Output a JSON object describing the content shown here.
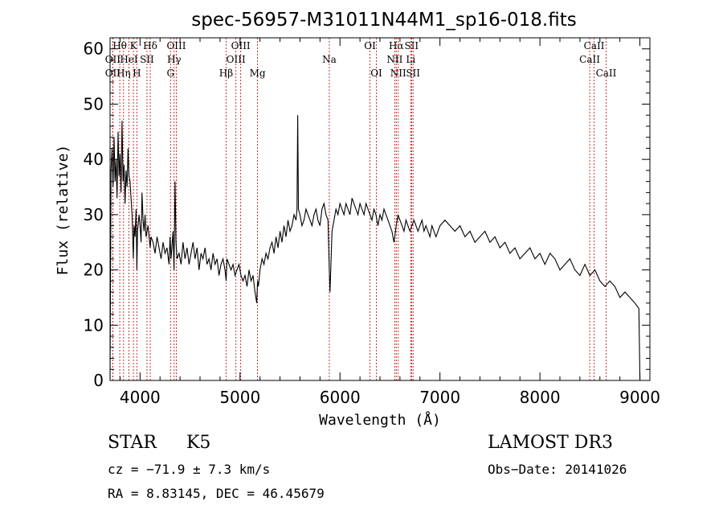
{
  "chart_data": {
    "type": "line",
    "title": "spec-56957-M31011N44M1_sp16-018.fits",
    "xlabel": "Wavelength (Å)",
    "ylabel": "Flux (relative)",
    "xlim": [
      3700,
      9100
    ],
    "ylim": [
      0,
      62
    ],
    "xticks": [
      4000,
      5000,
      6000,
      7000,
      8000,
      9000
    ],
    "yticks": [
      0,
      10,
      20,
      30,
      40,
      50,
      60
    ],
    "grid": false,
    "series": [
      {
        "x": [
          3700,
          3710,
          3720,
          3730,
          3740,
          3750,
          3760,
          3770,
          3780,
          3790,
          3800,
          3810,
          3820,
          3830,
          3840,
          3850,
          3860,
          3870,
          3880,
          3890,
          3900,
          3910,
          3920,
          3930,
          3933,
          3940,
          3950,
          3960,
          3968,
          3975,
          3990,
          4000,
          4010,
          4020,
          4030,
          4040,
          4050,
          4060,
          4080,
          4101,
          4110,
          4130,
          4150,
          4170,
          4190,
          4210,
          4230,
          4250,
          4270,
          4290,
          4300,
          4310,
          4330,
          4340,
          4350,
          4360,
          4370,
          4390,
          4410,
          4430,
          4450,
          4470,
          4490,
          4510,
          4530,
          4550,
          4570,
          4590,
          4610,
          4630,
          4650,
          4670,
          4690,
          4710,
          4730,
          4750,
          4770,
          4790,
          4810,
          4830,
          4850,
          4861,
          4870,
          4890,
          4910,
          4930,
          4950,
          4970,
          4990,
          5010,
          5030,
          5050,
          5070,
          5090,
          5110,
          5130,
          5150,
          5167,
          5175,
          5183,
          5200,
          5220,
          5240,
          5260,
          5280,
          5300,
          5320,
          5340,
          5360,
          5380,
          5400,
          5420,
          5440,
          5460,
          5480,
          5500,
          5520,
          5540,
          5560,
          5570,
          5577,
          5584,
          5600,
          5620,
          5640,
          5660,
          5680,
          5700,
          5720,
          5740,
          5760,
          5780,
          5800,
          5820,
          5840,
          5860,
          5880,
          5893,
          5900,
          5920,
          5940,
          5960,
          5980,
          6000,
          6020,
          6040,
          6060,
          6080,
          6100,
          6120,
          6140,
          6160,
          6180,
          6200,
          6220,
          6240,
          6260,
          6280,
          6300,
          6320,
          6340,
          6360,
          6380,
          6400,
          6420,
          6440,
          6460,
          6480,
          6500,
          6520,
          6540,
          6563,
          6580,
          6600,
          6620,
          6640,
          6660,
          6680,
          6700,
          6720,
          6740,
          6760,
          6780,
          6800,
          6820,
          6840,
          6860,
          6880,
          6900,
          6920,
          6940,
          6960,
          6980,
          7000,
          7050,
          7100,
          7150,
          7200,
          7250,
          7300,
          7350,
          7400,
          7450,
          7500,
          7550,
          7600,
          7650,
          7700,
          7750,
          7800,
          7850,
          7900,
          7950,
          8000,
          8050,
          8100,
          8150,
          8200,
          8250,
          8300,
          8350,
          8400,
          8450,
          8500,
          8550,
          8600,
          8650,
          8700,
          8750,
          8800,
          8850,
          8900,
          8950,
          8990,
          9000
        ],
        "y": [
          0,
          38,
          42,
          35,
          44,
          36,
          40,
          33,
          45,
          37,
          41,
          34,
          47,
          36,
          39,
          32,
          38,
          35,
          42,
          37,
          36,
          33,
          30,
          24,
          22,
          28,
          26,
          31,
          20,
          27,
          30,
          28,
          25,
          34,
          29,
          27,
          30,
          26,
          28,
          24,
          26,
          25,
          23,
          26,
          24,
          22,
          25,
          23,
          24,
          21,
          26,
          22,
          27,
          20,
          36,
          25,
          22,
          23,
          21,
          25,
          22,
          24,
          21,
          23,
          25,
          22,
          24,
          20,
          23,
          22,
          24,
          21,
          22,
          20,
          23,
          21,
          22,
          19,
          21,
          22,
          20,
          18,
          22,
          21,
          20,
          21,
          19,
          20,
          21,
          19,
          18,
          19,
          17,
          20,
          18,
          19,
          16,
          14,
          18,
          17,
          20,
          22,
          21,
          23,
          22,
          24,
          25,
          23,
          26,
          24,
          27,
          25,
          28,
          26,
          29,
          27,
          28,
          30,
          29,
          31,
          48,
          31,
          30,
          28,
          29,
          31,
          30,
          29,
          28,
          30,
          31,
          29,
          28,
          31,
          32,
          30,
          29,
          20,
          16,
          27,
          29,
          31,
          30,
          32,
          31,
          30,
          32,
          31,
          30,
          33,
          32,
          31,
          30,
          32,
          31,
          30,
          32,
          31,
          30,
          29,
          31,
          30,
          28,
          30,
          29,
          31,
          30,
          29,
          28,
          27,
          25,
          28,
          30,
          29,
          28,
          27,
          29,
          28,
          27,
          28,
          29,
          28,
          27,
          28,
          29,
          27,
          28,
          27,
          26,
          28,
          27,
          26,
          27,
          28,
          29,
          28,
          27,
          28,
          26,
          27,
          25,
          26,
          27,
          25,
          26,
          24,
          25,
          23,
          24,
          22,
          23,
          24,
          22,
          23,
          21,
          23,
          22,
          20,
          21,
          22,
          20,
          19,
          21,
          19,
          20,
          18,
          17,
          18,
          17,
          15,
          16,
          15,
          14,
          13,
          0
        ]
      }
    ],
    "lines": [
      {
        "label": "Hθ",
        "x": 3797,
        "row": 1
      },
      {
        "label": "OII",
        "x": 3727,
        "row": 2
      },
      {
        "label": "OII",
        "x": 3727,
        "row": 3
      },
      {
        "label": "K",
        "x": 3934,
        "row": 1
      },
      {
        "label": "HeI",
        "x": 3889,
        "row": 2
      },
      {
        "label": "Hη",
        "x": 3835,
        "row": 3
      },
      {
        "label": "SII",
        "x": 4069,
        "row": 2
      },
      {
        "label": "H",
        "x": 3968,
        "row": 3
      },
      {
        "label": "Hδ",
        "x": 4102,
        "row": 1
      },
      {
        "label": "OIII",
        "x": 4363,
        "row": 1
      },
      {
        "label": "Hγ",
        "x": 4341,
        "row": 2
      },
      {
        "label": "G",
        "x": 4305,
        "row": 3
      },
      {
        "label": "OIII",
        "x": 5007,
        "row": 1
      },
      {
        "label": "OIII",
        "x": 4959,
        "row": 2
      },
      {
        "label": "Hβ",
        "x": 4861,
        "row": 3
      },
      {
        "label": "Mg",
        "x": 5175,
        "row": 3
      },
      {
        "label": "Na",
        "x": 5893,
        "row": 2
      },
      {
        "label": "OI",
        "x": 6300,
        "row": 1
      },
      {
        "label": "OI",
        "x": 6364,
        "row": 3
      },
      {
        "label": "Hα",
        "x": 6563,
        "row": 1
      },
      {
        "label": "SII",
        "x": 6716,
        "row": 1
      },
      {
        "label": "NII",
        "x": 6548,
        "row": 2
      },
      {
        "label": "Li",
        "x": 6708,
        "row": 2
      },
      {
        "label": "NII",
        "x": 6583,
        "row": 3
      },
      {
        "label": "SII",
        "x": 6731,
        "row": 3
      },
      {
        "label": "CaII",
        "x": 8542,
        "row": 1
      },
      {
        "label": "CaII",
        "x": 8498,
        "row": 2
      },
      {
        "label": "CaII",
        "x": 8662,
        "row": 3
      }
    ]
  },
  "info": {
    "class": "STAR",
    "subclass": "K5",
    "survey": "LAMOST DR3",
    "cz": "cz = −71.9 ± 7.3 km/s",
    "obs_date": "Obs−Date: 20141026",
    "radec": "RA =   8.83145, DEC =  46.45679"
  }
}
